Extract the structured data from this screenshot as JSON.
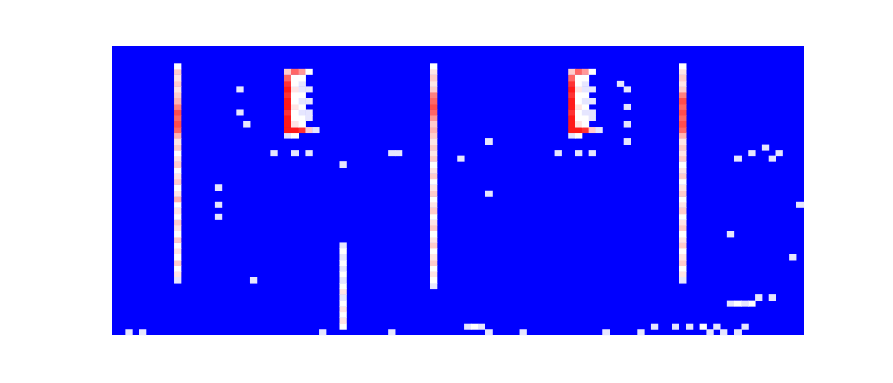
{
  "chart_data": {
    "type": "heatmap",
    "xlim": [
      0,
      100
    ],
    "ylim": [
      0,
      50
    ],
    "tick_labels": false,
    "grid": false,
    "color_range": [
      0,
      1
    ],
    "colors": [
      "#0000ff",
      "#ffffff",
      "#ff0000"
    ],
    "cells": [
      [
        9,
        9,
        0.45
      ],
      [
        9,
        10,
        0.55
      ],
      [
        9,
        11,
        0.5
      ],
      [
        9,
        12,
        0.6
      ],
      [
        9,
        13,
        0.5
      ],
      [
        9,
        14,
        0.55
      ],
      [
        9,
        15,
        0.5
      ],
      [
        9,
        16,
        0.6
      ],
      [
        9,
        17,
        0.5
      ],
      [
        9,
        18,
        0.55
      ],
      [
        9,
        19,
        0.6
      ],
      [
        9,
        20,
        0.5
      ],
      [
        9,
        21,
        0.55
      ],
      [
        9,
        22,
        0.5
      ],
      [
        9,
        23,
        0.65
      ],
      [
        9,
        24,
        0.55
      ],
      [
        9,
        25,
        0.5
      ],
      [
        9,
        26,
        0.6
      ],
      [
        9,
        27,
        0.55
      ],
      [
        9,
        28,
        0.5
      ],
      [
        9,
        29,
        0.6
      ],
      [
        9,
        30,
        0.55
      ],
      [
        9,
        31,
        0.5
      ],
      [
        9,
        32,
        0.6
      ],
      [
        9,
        33,
        0.55
      ],
      [
        9,
        34,
        0.65
      ],
      [
        9,
        35,
        0.8
      ],
      [
        9,
        36,
        0.85
      ],
      [
        9,
        37,
        0.8
      ],
      [
        9,
        38,
        0.85
      ],
      [
        9,
        39,
        0.75
      ],
      [
        9,
        40,
        0.65
      ],
      [
        9,
        41,
        0.6
      ],
      [
        9,
        42,
        0.55
      ],
      [
        9,
        43,
        0.6
      ],
      [
        9,
        44,
        0.55
      ],
      [
        9,
        45,
        0.6
      ],
      [
        9,
        46,
        0.5
      ],
      [
        46,
        8,
        0.45
      ],
      [
        46,
        9,
        0.5
      ],
      [
        46,
        10,
        0.55
      ],
      [
        46,
        11,
        0.5
      ],
      [
        46,
        12,
        0.6
      ],
      [
        46,
        13,
        0.55
      ],
      [
        46,
        14,
        0.5
      ],
      [
        46,
        15,
        0.6
      ],
      [
        46,
        16,
        0.55
      ],
      [
        46,
        17,
        0.5
      ],
      [
        46,
        18,
        0.6
      ],
      [
        46,
        19,
        0.55
      ],
      [
        46,
        20,
        0.5
      ],
      [
        46,
        21,
        0.6
      ],
      [
        46,
        22,
        0.55
      ],
      [
        46,
        23,
        0.5
      ],
      [
        46,
        24,
        0.6
      ],
      [
        46,
        25,
        0.55
      ],
      [
        46,
        26,
        0.5
      ],
      [
        46,
        27,
        0.6
      ],
      [
        46,
        28,
        0.55
      ],
      [
        46,
        29,
        0.5
      ],
      [
        46,
        30,
        0.6
      ],
      [
        46,
        31,
        0.55
      ],
      [
        46,
        32,
        0.6
      ],
      [
        46,
        33,
        0.55
      ],
      [
        46,
        34,
        0.6
      ],
      [
        46,
        35,
        0.65
      ],
      [
        46,
        36,
        0.6
      ],
      [
        46,
        37,
        0.7
      ],
      [
        46,
        38,
        0.8
      ],
      [
        46,
        39,
        0.85
      ],
      [
        46,
        40,
        0.8
      ],
      [
        46,
        41,
        0.75
      ],
      [
        46,
        42,
        0.6
      ],
      [
        46,
        43,
        0.55
      ],
      [
        46,
        44,
        0.6
      ],
      [
        46,
        45,
        0.55
      ],
      [
        46,
        46,
        0.5
      ],
      [
        82,
        9,
        0.45
      ],
      [
        82,
        10,
        0.55
      ],
      [
        82,
        11,
        0.5
      ],
      [
        82,
        12,
        0.6
      ],
      [
        82,
        13,
        0.55
      ],
      [
        82,
        14,
        0.5
      ],
      [
        82,
        15,
        0.6
      ],
      [
        82,
        16,
        0.55
      ],
      [
        82,
        17,
        0.5
      ],
      [
        82,
        18,
        0.6
      ],
      [
        82,
        19,
        0.55
      ],
      [
        82,
        20,
        0.5
      ],
      [
        82,
        21,
        0.6
      ],
      [
        82,
        22,
        0.55
      ],
      [
        82,
        23,
        0.5
      ],
      [
        82,
        24,
        0.6
      ],
      [
        82,
        25,
        0.55
      ],
      [
        82,
        26,
        0.5
      ],
      [
        82,
        27,
        0.6
      ],
      [
        82,
        28,
        0.55
      ],
      [
        82,
        29,
        0.5
      ],
      [
        82,
        30,
        0.6
      ],
      [
        82,
        31,
        0.55
      ],
      [
        82,
        32,
        0.6
      ],
      [
        82,
        33,
        0.55
      ],
      [
        82,
        34,
        0.65
      ],
      [
        82,
        35,
        0.8
      ],
      [
        82,
        36,
        0.85
      ],
      [
        82,
        37,
        0.8
      ],
      [
        82,
        38,
        0.85
      ],
      [
        82,
        39,
        0.8
      ],
      [
        82,
        40,
        0.85
      ],
      [
        82,
        41,
        0.75
      ],
      [
        82,
        42,
        0.6
      ],
      [
        82,
        43,
        0.55
      ],
      [
        82,
        44,
        0.6
      ],
      [
        82,
        45,
        0.55
      ],
      [
        82,
        46,
        0.5
      ],
      [
        25,
        34,
        0.45
      ],
      [
        26,
        34,
        0.5
      ],
      [
        25,
        35,
        0.95
      ],
      [
        26,
        35,
        0.95
      ],
      [
        27,
        35,
        0.9
      ],
      [
        28,
        35,
        0.6
      ],
      [
        29,
        35,
        0.45
      ],
      [
        25,
        36,
        0.95
      ],
      [
        25,
        37,
        0.95
      ],
      [
        25,
        38,
        0.9
      ],
      [
        25,
        39,
        0.95
      ],
      [
        25,
        40,
        0.95
      ],
      [
        25,
        41,
        0.9
      ],
      [
        25,
        42,
        0.95
      ],
      [
        25,
        43,
        0.9
      ],
      [
        25,
        44,
        0.8
      ],
      [
        26,
        36,
        0.55
      ],
      [
        26,
        37,
        0.5
      ],
      [
        26,
        38,
        0.5
      ],
      [
        26,
        39,
        0.55
      ],
      [
        26,
        40,
        0.5
      ],
      [
        26,
        41,
        0.5
      ],
      [
        26,
        42,
        0.55
      ],
      [
        26,
        43,
        0.5
      ],
      [
        26,
        44,
        0.5
      ],
      [
        27,
        36,
        0.5
      ],
      [
        27,
        37,
        0.5
      ],
      [
        27,
        38,
        0.45
      ],
      [
        27,
        39,
        0.5
      ],
      [
        27,
        40,
        0.45
      ],
      [
        27,
        41,
        0.5
      ],
      [
        27,
        42,
        0.45
      ],
      [
        27,
        43,
        0.45
      ],
      [
        27,
        44,
        0.5
      ],
      [
        28,
        37,
        0.45
      ],
      [
        28,
        38,
        0.45
      ],
      [
        28,
        40,
        0.45
      ],
      [
        28,
        42,
        0.45
      ],
      [
        25,
        45,
        0.6
      ],
      [
        26,
        45,
        0.8
      ],
      [
        27,
        45,
        0.7
      ],
      [
        28,
        45,
        0.5
      ],
      [
        23,
        31,
        0.45
      ],
      [
        26,
        31,
        0.45
      ],
      [
        28,
        31,
        0.45
      ],
      [
        66,
        34,
        0.45
      ],
      [
        67,
        34,
        0.5
      ],
      [
        66,
        35,
        0.95
      ],
      [
        67,
        35,
        0.95
      ],
      [
        68,
        35,
        0.9
      ],
      [
        69,
        35,
        0.6
      ],
      [
        70,
        35,
        0.45
      ],
      [
        66,
        36,
        0.95
      ],
      [
        66,
        37,
        0.95
      ],
      [
        66,
        38,
        0.9
      ],
      [
        66,
        39,
        0.95
      ],
      [
        66,
        40,
        0.95
      ],
      [
        66,
        41,
        0.9
      ],
      [
        66,
        42,
        0.95
      ],
      [
        66,
        43,
        0.9
      ],
      [
        66,
        44,
        0.8
      ],
      [
        67,
        36,
        0.55
      ],
      [
        67,
        37,
        0.5
      ],
      [
        67,
        38,
        0.5
      ],
      [
        67,
        39,
        0.55
      ],
      [
        67,
        40,
        0.5
      ],
      [
        67,
        41,
        0.5
      ],
      [
        67,
        42,
        0.55
      ],
      [
        67,
        43,
        0.5
      ],
      [
        67,
        44,
        0.5
      ],
      [
        68,
        36,
        0.5
      ],
      [
        68,
        37,
        0.5
      ],
      [
        68,
        38,
        0.45
      ],
      [
        68,
        39,
        0.5
      ],
      [
        68,
        40,
        0.45
      ],
      [
        68,
        41,
        0.5
      ],
      [
        68,
        42,
        0.45
      ],
      [
        68,
        43,
        0.45
      ],
      [
        68,
        44,
        0.5
      ],
      [
        69,
        37,
        0.45
      ],
      [
        69,
        38,
        0.45
      ],
      [
        69,
        40,
        0.45
      ],
      [
        69,
        42,
        0.45
      ],
      [
        66,
        45,
        0.6
      ],
      [
        67,
        45,
        0.8
      ],
      [
        68,
        45,
        0.7
      ],
      [
        69,
        45,
        0.5
      ],
      [
        64,
        31,
        0.45
      ],
      [
        67,
        31,
        0.45
      ],
      [
        69,
        31,
        0.45
      ],
      [
        33,
        1,
        0.5
      ],
      [
        33,
        2,
        0.55
      ],
      [
        33,
        3,
        0.5
      ],
      [
        33,
        4,
        0.55
      ],
      [
        33,
        5,
        0.5
      ],
      [
        33,
        6,
        0.45
      ],
      [
        33,
        7,
        0.55
      ],
      [
        33,
        8,
        0.5
      ],
      [
        33,
        9,
        0.45
      ],
      [
        33,
        10,
        0.5
      ],
      [
        33,
        11,
        0.45
      ],
      [
        33,
        12,
        0.5
      ],
      [
        33,
        13,
        0.45
      ],
      [
        33,
        14,
        0.5
      ],
      [
        33,
        15,
        0.45
      ],
      [
        15,
        20,
        0.45
      ],
      [
        15,
        22,
        0.45
      ],
      [
        15,
        25,
        0.45
      ],
      [
        18,
        38,
        0.45
      ],
      [
        18,
        42,
        0.45
      ],
      [
        19,
        36,
        0.45
      ],
      [
        20,
        9,
        0.45
      ],
      [
        33,
        29,
        0.45
      ],
      [
        40,
        31,
        0.45
      ],
      [
        41,
        31,
        0.45
      ],
      [
        50,
        30,
        0.45
      ],
      [
        54,
        33,
        0.45
      ],
      [
        54,
        24,
        0.45
      ],
      [
        74,
        33,
        0.45
      ],
      [
        74,
        36,
        0.45
      ],
      [
        74,
        39,
        0.45
      ],
      [
        74,
        42,
        0.45
      ],
      [
        73,
        43,
        0.45
      ],
      [
        51,
        1,
        0.45
      ],
      [
        52,
        1,
        0.5
      ],
      [
        53,
        1,
        0.45
      ],
      [
        54,
        0,
        0.45
      ],
      [
        59,
        0,
        0.45
      ],
      [
        76,
        0,
        0.45
      ],
      [
        78,
        1,
        0.45
      ],
      [
        81,
        1,
        0.45
      ],
      [
        83,
        1,
        0.45
      ],
      [
        85,
        1,
        0.5
      ],
      [
        86,
        0,
        0.45
      ],
      [
        87,
        1,
        0.45
      ],
      [
        88,
        0,
        0.45
      ],
      [
        90,
        0,
        0.45
      ],
      [
        91,
        1,
        0.45
      ],
      [
        89,
        5,
        0.45
      ],
      [
        90,
        5,
        0.5
      ],
      [
        91,
        5,
        0.45
      ],
      [
        92,
        5,
        0.5
      ],
      [
        93,
        6,
        0.45
      ],
      [
        95,
        6,
        0.45
      ],
      [
        89,
        17,
        0.45
      ],
      [
        98,
        13,
        0.45
      ],
      [
        99,
        22,
        0.45
      ],
      [
        90,
        30,
        0.45
      ],
      [
        92,
        31,
        0.45
      ],
      [
        94,
        32,
        0.45
      ],
      [
        96,
        31,
        0.45
      ],
      [
        95,
        30,
        0.45
      ],
      [
        2,
        0,
        0.45
      ],
      [
        4,
        0,
        0.45
      ],
      [
        30,
        0,
        0.45
      ],
      [
        40,
        0,
        0.45
      ],
      [
        71,
        0,
        0.45
      ]
    ]
  }
}
